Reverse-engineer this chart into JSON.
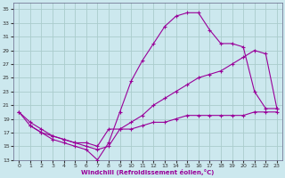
{
  "xlabel": "Windchill (Refroidissement éolien,°C)",
  "bg_color": "#cce8ee",
  "grid_color": "#aacccc",
  "line_color": "#990099",
  "xlim": [
    -0.5,
    23.5
  ],
  "ylim": [
    13,
    36
  ],
  "xticks": [
    0,
    1,
    2,
    3,
    4,
    5,
    6,
    7,
    8,
    9,
    10,
    11,
    12,
    13,
    14,
    15,
    16,
    17,
    18,
    19,
    20,
    21,
    22,
    23
  ],
  "yticks": [
    13,
    15,
    17,
    19,
    21,
    23,
    25,
    27,
    29,
    31,
    33,
    35
  ],
  "line1_x": [
    0,
    1,
    2,
    3,
    4,
    5,
    6,
    7,
    8,
    9,
    10,
    11,
    12,
    13,
    14,
    15,
    16,
    17,
    18,
    19,
    20,
    21,
    22,
    23
  ],
  "line1_y": [
    20,
    18,
    17,
    16,
    15.5,
    15,
    14.5,
    13,
    15.5,
    20,
    24.5,
    27.5,
    30,
    32.5,
    34,
    34.5,
    34.5,
    32,
    30,
    30,
    29.5,
    23,
    20.5,
    20.5
  ],
  "line2_x": [
    0,
    1,
    2,
    3,
    4,
    5,
    6,
    7,
    8,
    9,
    10,
    11,
    12,
    13,
    14,
    15,
    16,
    17,
    18,
    19,
    20,
    21,
    22,
    23
  ],
  "line2_y": [
    20,
    18.5,
    17.5,
    16.5,
    16,
    15.5,
    15,
    14.5,
    15,
    17.5,
    18.5,
    19.5,
    21,
    22,
    23,
    24,
    25,
    25.5,
    26,
    27,
    28,
    29,
    28.5,
    20.5
  ],
  "line3_x": [
    1,
    2,
    3,
    4,
    5,
    6,
    7,
    8,
    9,
    10,
    11,
    12,
    13,
    14,
    15,
    16,
    17,
    18,
    19,
    20,
    21,
    22,
    23
  ],
  "line3_y": [
    18,
    17,
    16.5,
    16,
    15.5,
    15.5,
    15,
    17.5,
    17.5,
    17.5,
    18,
    18.5,
    18.5,
    19,
    19.5,
    19.5,
    19.5,
    19.5,
    19.5,
    19.5,
    20,
    20,
    20
  ]
}
